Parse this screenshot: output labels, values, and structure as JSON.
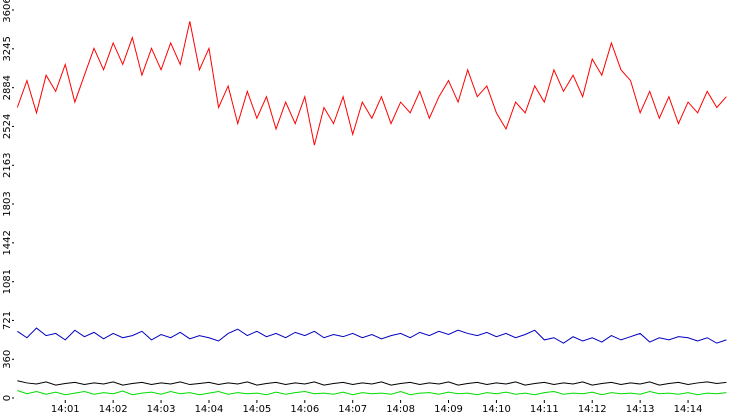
{
  "chart_data": {
    "type": "line",
    "x": [
      840,
      840.2,
      840.4,
      840.6,
      840.8,
      841,
      841.2,
      841.4,
      841.6,
      841.8,
      842,
      842.2,
      842.4,
      842.6,
      842.8,
      843,
      843.2,
      843.4,
      843.6,
      843.8,
      844,
      844.2,
      844.4,
      844.6,
      844.8,
      845,
      845.2,
      845.4,
      845.6,
      845.8,
      846,
      846.2,
      846.4,
      846.6,
      846.8,
      847,
      847.2,
      847.4,
      847.6,
      847.8,
      848,
      848.2,
      848.4,
      848.6,
      848.8,
      849,
      849.2,
      849.4,
      849.6,
      849.8,
      850,
      850.2,
      850.4,
      850.6,
      850.8,
      851,
      851.2,
      851.4,
      851.6,
      851.8,
      852,
      852.2,
      852.4,
      852.6,
      852.8,
      853,
      853.2,
      853.4,
      853.6,
      853.8,
      854,
      854.2,
      854.4,
      854.6,
      854.8
    ],
    "series": [
      {
        "color": "#ff0000",
        "values": [
          2700,
          2950,
          2650,
          3000,
          2850,
          3100,
          2750,
          3000,
          3250,
          3050,
          3300,
          3100,
          3350,
          3000,
          3250,
          3050,
          3300,
          3100,
          3500,
          3050,
          3250,
          2700,
          2900,
          2550,
          2850,
          2600,
          2800,
          2500,
          2750,
          2550,
          2800,
          2350,
          2700,
          2550,
          2800,
          2450,
          2750,
          2600,
          2800,
          2550,
          2750,
          2650,
          2850,
          2600,
          2800,
          2950,
          2750,
          3050,
          2800,
          2900,
          2650,
          2500,
          2750,
          2650,
          2900,
          2750,
          3050,
          2850,
          3000,
          2800,
          3150,
          3000,
          3300,
          3050,
          2950,
          2650,
          2850,
          2600,
          2800,
          2550,
          2750,
          2650,
          2850,
          2700,
          2800
        ]
      },
      {
        "color": "#0000c0",
        "values": [
          620,
          560,
          650,
          580,
          600,
          540,
          630,
          570,
          610,
          550,
          600,
          560,
          580,
          620,
          540,
          590,
          560,
          610,
          550,
          580,
          560,
          530,
          600,
          640,
          580,
          620,
          570,
          600,
          560,
          610,
          580,
          620,
          560,
          590,
          570,
          600,
          560,
          590,
          550,
          580,
          600,
          560,
          610,
          580,
          620,
          590,
          630,
          600,
          580,
          610,
          570,
          600,
          560,
          590,
          630,
          540,
          560,
          510,
          570,
          530,
          560,
          520,
          580,
          540,
          570,
          600,
          520,
          560,
          540,
          570,
          560,
          530,
          560,
          510,
          540
        ]
      },
      {
        "color": "#000000",
        "values": [
          160,
          140,
          130,
          150,
          120,
          135,
          145,
          125,
          140,
          130,
          150,
          120,
          135,
          145,
          125,
          140,
          130,
          150,
          125,
          135,
          145,
          125,
          140,
          130,
          150,
          120,
          135,
          145,
          125,
          140,
          130,
          150,
          120,
          135,
          145,
          125,
          140,
          130,
          150,
          120,
          135,
          145,
          125,
          140,
          130,
          150,
          120,
          135,
          145,
          125,
          140,
          130,
          150,
          120,
          135,
          145,
          125,
          140,
          130,
          150,
          120,
          135,
          145,
          125,
          140,
          130,
          150,
          120,
          135,
          145,
          125,
          140,
          150,
          135,
          145
        ]
      },
      {
        "color": "#00dd00",
        "values": [
          70,
          40,
          60,
          35,
          55,
          30,
          45,
          60,
          35,
          50,
          40,
          65,
          30,
          45,
          55,
          35,
          60,
          40,
          50,
          30,
          45,
          60,
          35,
          50,
          40,
          45,
          30,
          55,
          35,
          50,
          60,
          40,
          45,
          35,
          55,
          30,
          50,
          40,
          45,
          35,
          60,
          30,
          45,
          50,
          35,
          55,
          40,
          45,
          30,
          50,
          40,
          55,
          35,
          45,
          30,
          50,
          60,
          35,
          45,
          40,
          55,
          30,
          50,
          40,
          45,
          35,
          60,
          40,
          45,
          35,
          50,
          30,
          45,
          40,
          50
        ]
      }
    ],
    "xlim": [
      839.93,
      854.98
    ],
    "xticks": [
      {
        "value": 841,
        "label": "14:01"
      },
      {
        "value": 842,
        "label": "14:02"
      },
      {
        "value": 843,
        "label": "14:03"
      },
      {
        "value": 844,
        "label": "14:04"
      },
      {
        "value": 845,
        "label": "14:05"
      },
      {
        "value": 846,
        "label": "14:06"
      },
      {
        "value": 847,
        "label": "14:07"
      },
      {
        "value": 848,
        "label": "14:08"
      },
      {
        "value": 849,
        "label": "14:09"
      },
      {
        "value": 850,
        "label": "14:10"
      },
      {
        "value": 851,
        "label": "14:11"
      },
      {
        "value": 852,
        "label": "14:12"
      },
      {
        "value": 853,
        "label": "14:13"
      },
      {
        "value": 854,
        "label": "14:14"
      }
    ],
    "ylim": [
      0,
      3606
    ],
    "yticks": [
      0,
      360,
      721,
      1081,
      1442,
      1803,
      2163,
      2524,
      2884,
      3245,
      3606
    ]
  }
}
